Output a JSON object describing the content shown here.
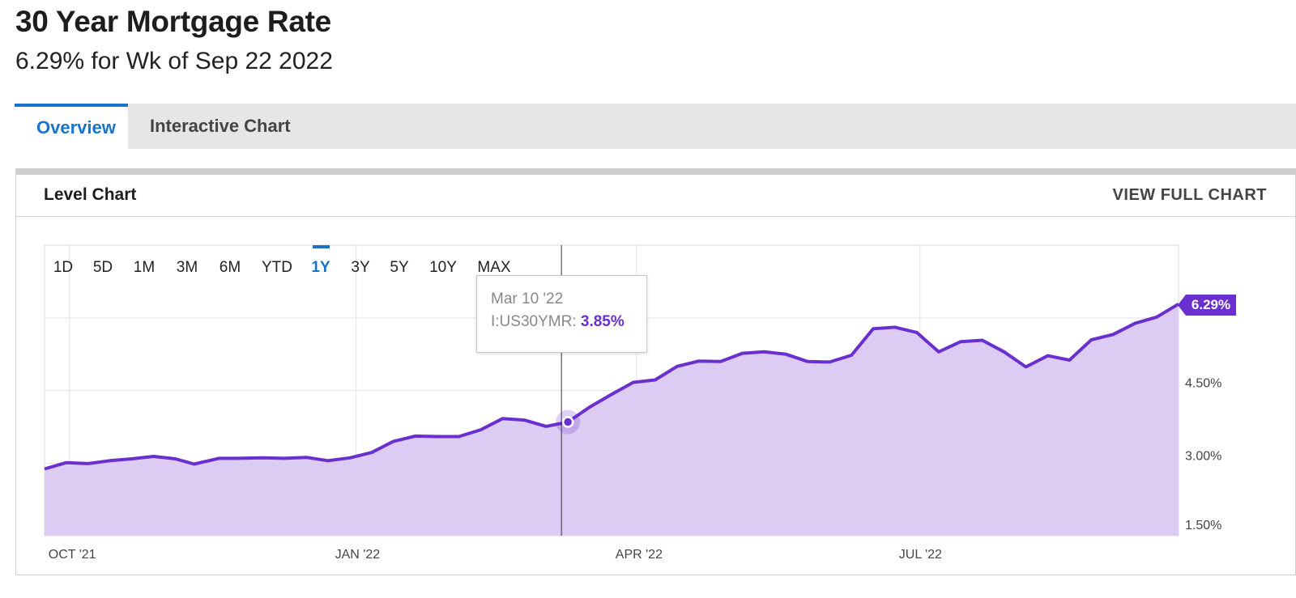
{
  "header": {
    "title": "30 Year Mortgage Rate",
    "subtitle": "6.29% for Wk of Sep 22 2022"
  },
  "tabs": [
    {
      "label": "Overview",
      "active": true
    },
    {
      "label": "Interactive Chart",
      "active": false
    }
  ],
  "card": {
    "title": "Level Chart",
    "view_full_label": "VIEW FULL CHART"
  },
  "ranges": [
    "1D",
    "5D",
    "1M",
    "3M",
    "6M",
    "YTD",
    "1Y",
    "3Y",
    "5Y",
    "10Y",
    "MAX"
  ],
  "active_range": "1Y",
  "tooltip": {
    "date": "Mar 10 '22",
    "series_label": "I:US30YMR:",
    "value": "3.85%"
  },
  "last_value_label": "6.29%",
  "colors": {
    "accent": "#1a73c8",
    "line": "#6a2fcf",
    "area": "#dccbf3"
  },
  "chart_data": {
    "type": "area",
    "series": [
      {
        "name": "I:US30YMR",
        "x": [
          "2021-09-23",
          "2021-09-30",
          "2021-10-07",
          "2021-10-14",
          "2021-10-21",
          "2021-10-28",
          "2021-11-04",
          "2021-11-10",
          "2021-11-18",
          "2021-11-24",
          "2021-12-02",
          "2021-12-09",
          "2021-12-16",
          "2021-12-23",
          "2021-12-30",
          "2022-01-06",
          "2022-01-13",
          "2022-01-20",
          "2022-01-27",
          "2022-02-03",
          "2022-02-10",
          "2022-02-17",
          "2022-02-24",
          "2022-03-03",
          "2022-03-10",
          "2022-03-17",
          "2022-03-24",
          "2022-03-31",
          "2022-04-07",
          "2022-04-14",
          "2022-04-21",
          "2022-04-28",
          "2022-05-05",
          "2022-05-12",
          "2022-05-19",
          "2022-05-26",
          "2022-06-02",
          "2022-06-09",
          "2022-06-16",
          "2022-06-23",
          "2022-06-30",
          "2022-07-07",
          "2022-07-14",
          "2022-07-21",
          "2022-07-28",
          "2022-08-04",
          "2022-08-11",
          "2022-08-18",
          "2022-08-25",
          "2022-09-01",
          "2022-09-08",
          "2022-09-15",
          "2022-09-22"
        ],
        "values": [
          2.88,
          3.01,
          2.99,
          3.05,
          3.09,
          3.14,
          3.09,
          2.98,
          3.1,
          3.1,
          3.11,
          3.1,
          3.12,
          3.05,
          3.11,
          3.22,
          3.45,
          3.56,
          3.55,
          3.55,
          3.69,
          3.92,
          3.89,
          3.76,
          3.85,
          4.16,
          4.42,
          4.67,
          4.72,
          5.0,
          5.11,
          5.1,
          5.27,
          5.3,
          5.25,
          5.1,
          5.09,
          5.23,
          5.78,
          5.81,
          5.7,
          5.3,
          5.51,
          5.54,
          5.3,
          4.99,
          5.22,
          5.13,
          5.55,
          5.66,
          5.89,
          6.02,
          6.29
        ]
      }
    ],
    "x_ticks": [
      "OCT '21",
      "JAN '22",
      "APR '22",
      "JUL '22"
    ],
    "y_ticks": [
      "1.50%",
      "3.00%",
      "4.50%"
    ],
    "ylim": [
      1.5,
      6.0
    ],
    "xlim": [
      "2021-09-23",
      "2022-09-22"
    ],
    "highlight": {
      "x": "2022-03-10",
      "value": 3.85
    },
    "grid": true,
    "title": "Level Chart"
  }
}
